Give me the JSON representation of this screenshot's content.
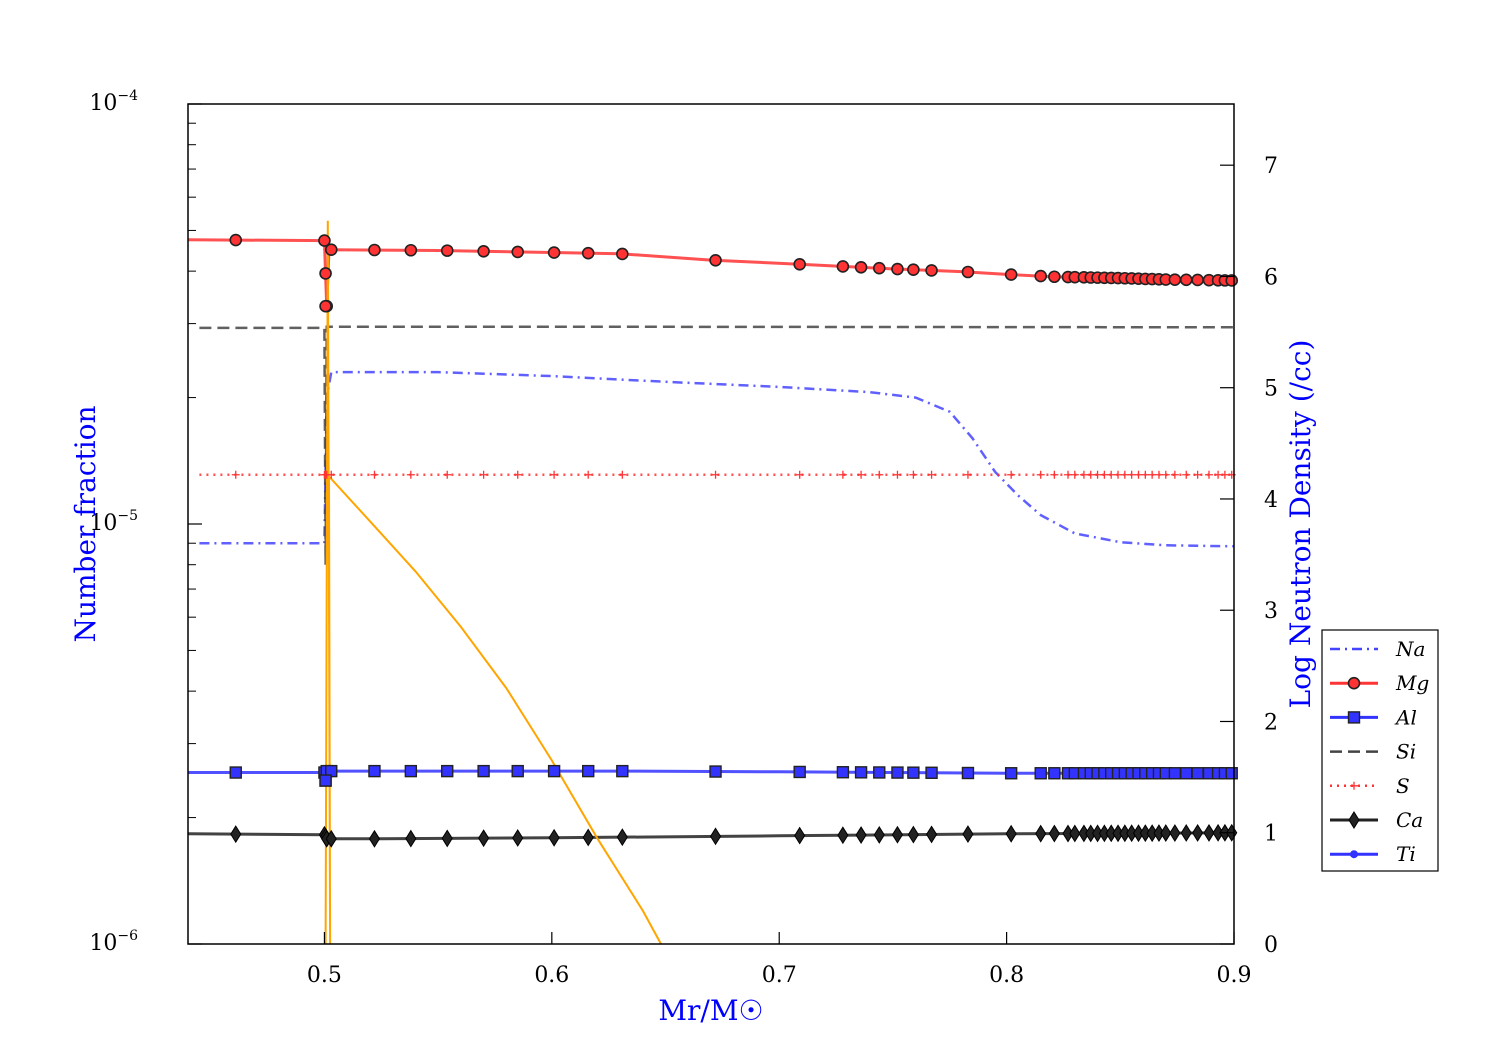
{
  "chart_data": {
    "type": "line",
    "xlabel": "Mr/M☉",
    "ylabel_left": "Number fraction",
    "ylabel_right": "Log Neutron Density (/cc)",
    "xlim": [
      0.44,
      0.9
    ],
    "ylim_left": [
      1e-06,
      0.0001
    ],
    "yscale_left": "log",
    "ylim_right": [
      0,
      7.55
    ],
    "x_ticks": [
      "0.5",
      "0.6",
      "0.7",
      "0.8",
      "0.9"
    ],
    "x_tick_values": [
      0.5,
      0.6,
      0.7,
      0.8,
      0.9
    ],
    "y_left_major": [
      {
        "base": "10",
        "exp": "−6",
        "value": 1e-06
      },
      {
        "base": "10",
        "exp": "−5",
        "value": 1e-05
      },
      {
        "base": "10",
        "exp": "−4",
        "value": 0.0001
      }
    ],
    "y_right_ticks": [
      "0",
      "1",
      "2",
      "3",
      "4",
      "5",
      "6",
      "7"
    ],
    "y_right_values": [
      0,
      1,
      2,
      3,
      4,
      5,
      6,
      7
    ],
    "marker_x": [
      0.461,
      0.5,
      0.5005,
      0.501,
      0.503,
      0.522,
      0.538,
      0.554,
      0.57,
      0.585,
      0.601,
      0.616,
      0.631,
      0.672,
      0.709,
      0.728,
      0.736,
      0.744,
      0.752,
      0.759,
      0.767,
      0.783,
      0.802,
      0.815,
      0.821,
      0.827,
      0.83,
      0.834,
      0.837,
      0.84,
      0.843,
      0.846,
      0.849,
      0.852,
      0.855,
      0.858,
      0.861,
      0.864,
      0.867,
      0.87,
      0.874,
      0.879,
      0.884,
      0.889,
      0.893,
      0.896,
      0.899
    ],
    "series": [
      {
        "name": "Na",
        "color": "#4444ff",
        "style": "dashdot",
        "marker": "none",
        "points": [
          [
            0.445,
            9e-06
          ],
          [
            0.5,
            9e-06
          ],
          [
            0.501,
            2e-05
          ],
          [
            0.503,
            2.3e-05
          ],
          [
            0.55,
            2.3e-05
          ],
          [
            0.6,
            2.25e-05
          ],
          [
            0.65,
            2.18e-05
          ],
          [
            0.7,
            2.12e-05
          ],
          [
            0.74,
            2.06e-05
          ],
          [
            0.76,
            2e-05
          ],
          [
            0.775,
            1.85e-05
          ],
          [
            0.785,
            1.6e-05
          ],
          [
            0.795,
            1.33e-05
          ],
          [
            0.805,
            1.17e-05
          ],
          [
            0.815,
            1.05e-05
          ],
          [
            0.83,
            9.5e-06
          ],
          [
            0.85,
            9.05e-06
          ],
          [
            0.87,
            8.9e-06
          ],
          [
            0.9,
            8.85e-06
          ]
        ]
      },
      {
        "name": "Mg",
        "color": "#ff3333",
        "style": "solid",
        "marker": "circle",
        "points": [
          [
            0.44,
            4.75e-05
          ],
          [
            0.5,
            4.73e-05
          ],
          [
            0.501,
            3.3e-05
          ],
          [
            0.502,
            4.5e-05
          ],
          [
            0.55,
            4.48e-05
          ],
          [
            0.6,
            4.43e-05
          ],
          [
            0.63,
            4.4e-05
          ],
          [
            0.67,
            4.25e-05
          ],
          [
            0.71,
            4.15e-05
          ],
          [
            0.75,
            4.05e-05
          ],
          [
            0.78,
            3.99e-05
          ],
          [
            0.8,
            3.93e-05
          ],
          [
            0.82,
            3.88e-05
          ],
          [
            0.85,
            3.85e-05
          ],
          [
            0.87,
            3.82e-05
          ],
          [
            0.9,
            3.8e-05
          ]
        ]
      },
      {
        "name": "Al",
        "color": "#3333ff",
        "style": "solid",
        "marker": "square",
        "points": [
          [
            0.44,
            2.56e-06
          ],
          [
            0.5,
            2.56e-06
          ],
          [
            0.5005,
            2.45e-06
          ],
          [
            0.501,
            2.58e-06
          ],
          [
            0.55,
            2.58e-06
          ],
          [
            0.63,
            2.58e-06
          ],
          [
            0.7,
            2.57e-06
          ],
          [
            0.75,
            2.56e-06
          ],
          [
            0.8,
            2.55e-06
          ],
          [
            0.85,
            2.55e-06
          ],
          [
            0.9,
            2.55e-06
          ]
        ]
      },
      {
        "name": "Si",
        "color": "#444444",
        "style": "dashed",
        "marker": "none",
        "points": [
          [
            0.445,
            2.93e-05
          ],
          [
            0.5,
            2.93e-05
          ],
          [
            0.5005,
            8e-06
          ],
          [
            0.501,
            2.95e-05
          ],
          [
            0.6,
            2.95e-05
          ],
          [
            0.9,
            2.94e-05
          ]
        ]
      },
      {
        "name": "S",
        "color": "#ff3333",
        "style": "dotted",
        "marker": "plus",
        "points": [
          [
            0.445,
            1.31e-05
          ],
          [
            0.9,
            1.31e-05
          ]
        ]
      },
      {
        "name": "Ca",
        "color": "#222222",
        "style": "solid",
        "marker": "diamond",
        "points": [
          [
            0.44,
            1.83e-06
          ],
          [
            0.5,
            1.82e-06
          ],
          [
            0.501,
            1.78e-06
          ],
          [
            0.52,
            1.78e-06
          ],
          [
            0.6,
            1.79e-06
          ],
          [
            0.7,
            1.81e-06
          ],
          [
            0.8,
            1.83e-06
          ],
          [
            0.9,
            1.84e-06
          ]
        ]
      },
      {
        "name": "Ti",
        "color": "#3333ff",
        "style": "solid",
        "marker": "dot",
        "points": []
      }
    ],
    "neutron_density": {
      "name": "neutron density",
      "color": "#ffa500",
      "axis": "right",
      "points": [
        [
          0.5005,
          0
        ],
        [
          0.5015,
          6.5
        ],
        [
          0.5025,
          0
        ],
        [
          0.502,
          4.2
        ],
        [
          0.503,
          4.18
        ],
        [
          0.52,
          3.8
        ],
        [
          0.54,
          3.35
        ],
        [
          0.56,
          2.85
        ],
        [
          0.58,
          2.3
        ],
        [
          0.6,
          1.65
        ],
        [
          0.62,
          0.95
        ],
        [
          0.64,
          0.3
        ],
        [
          0.648,
          0
        ]
      ]
    },
    "legend": {
      "position": "lower-right",
      "entries": [
        "Na",
        "Mg",
        "Al",
        "Si",
        "S",
        "Ca",
        "Ti"
      ]
    }
  }
}
